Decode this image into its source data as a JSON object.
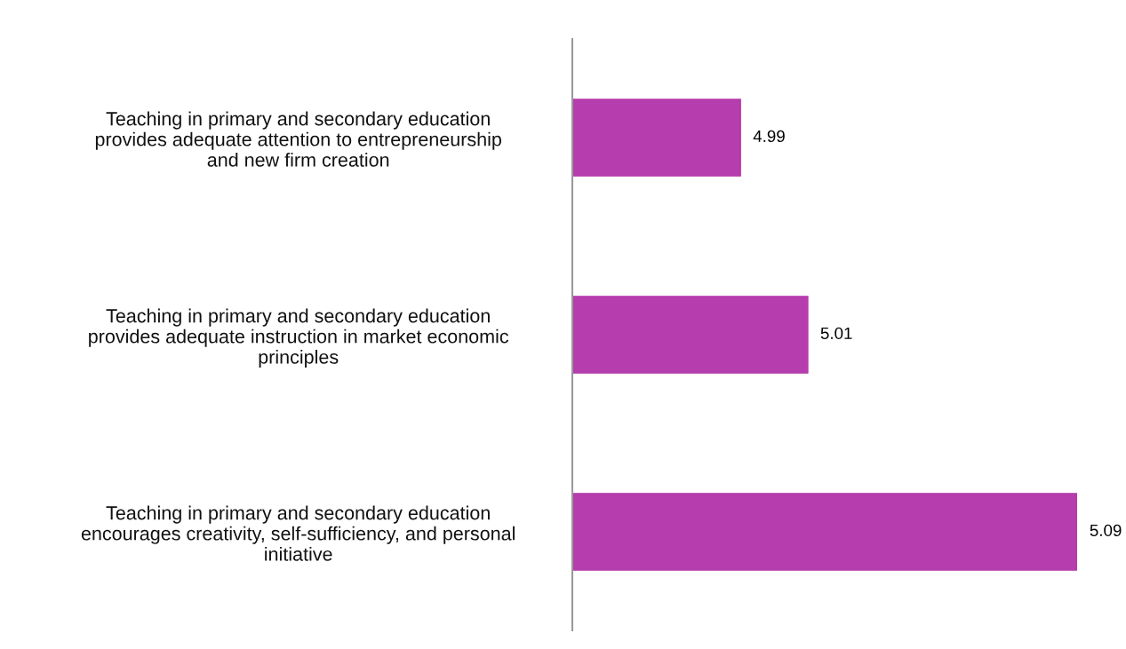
{
  "chart_data": {
    "type": "bar",
    "orientation": "horizontal",
    "categories": [
      "Teaching in primary and secondary education\nprovides adequate attention to entrepreneurship\nand new firm creation",
      "Teaching in primary and secondary education\nprovides adequate instruction in market economic\nprinciples",
      "Teaching in primary and secondary education\nencourages creativity, self-sufficiency, and personal\ninitiative"
    ],
    "values": [
      4.99,
      5.01,
      5.09
    ],
    "color": "#b53dad",
    "xlim": [
      4.94,
      5.09
    ],
    "tick_labels": "y",
    "data_labels": true,
    "grid": false,
    "legend": false
  }
}
